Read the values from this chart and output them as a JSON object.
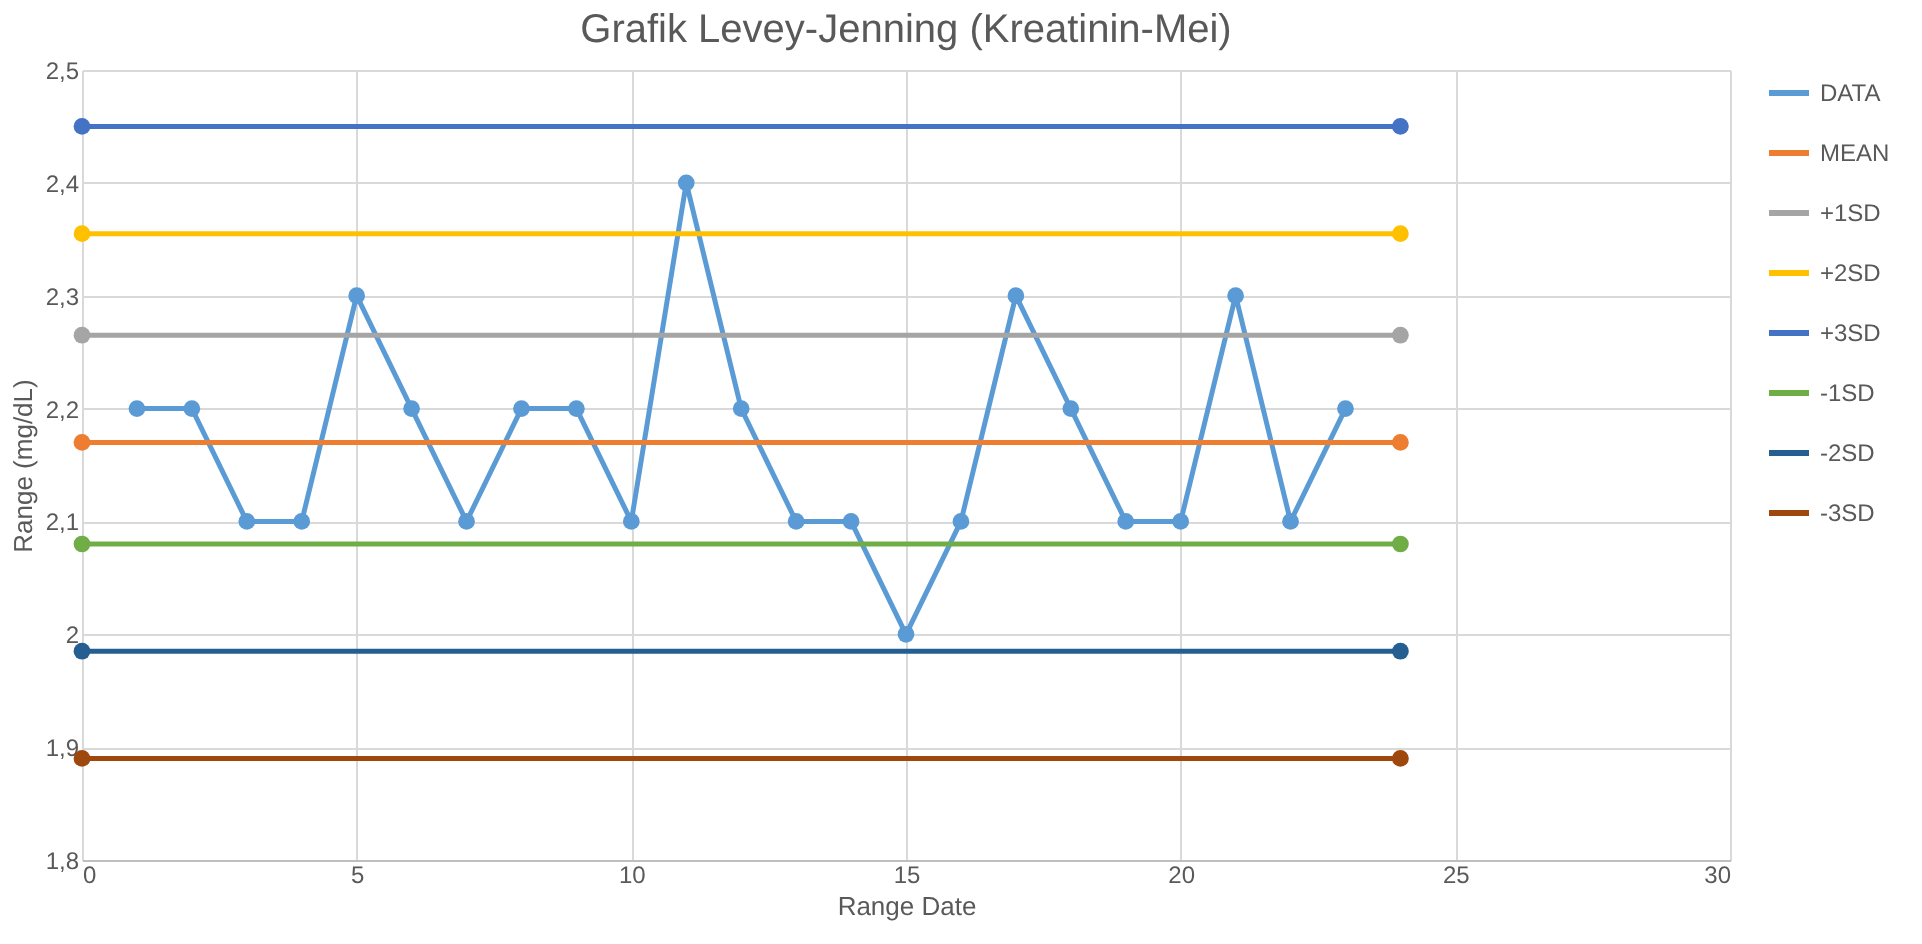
{
  "chart_data": {
    "type": "line",
    "title": "Grafik Levey-Jenning (Kreatinin-Mei)",
    "xlabel": "Range Date",
    "ylabel": "Range (mg/dL)",
    "series": [
      {
        "name": "DATA",
        "color": "#5b9bd5",
        "x": [
          1,
          2,
          3,
          4,
          5,
          6,
          7,
          8,
          9,
          10,
          11,
          12,
          13,
          14,
          15,
          16,
          17,
          18,
          19,
          20,
          21,
          22,
          23
        ],
        "values": [
          2.2,
          2.2,
          2.1,
          2.1,
          2.3,
          2.2,
          2.1,
          2.2,
          2.2,
          2.1,
          2.4,
          2.2,
          2.1,
          2.1,
          2.0,
          2.1,
          2.3,
          2.2,
          2.1,
          2.1,
          2.3,
          2.1,
          2.2
        ]
      },
      {
        "name": "MEAN",
        "color": "#ed7d31",
        "x": [
          0,
          24
        ],
        "values": [
          2.17,
          2.17
        ]
      },
      {
        "name": "+1SD",
        "color": "#a5a5a5",
        "x": [
          0,
          24
        ],
        "values": [
          2.265,
          2.265
        ]
      },
      {
        "name": "+2SD",
        "color": "#ffc000",
        "x": [
          0,
          24
        ],
        "values": [
          2.355,
          2.355
        ]
      },
      {
        "name": "+3SD",
        "color": "#4472c4",
        "x": [
          0,
          24
        ],
        "values": [
          2.45,
          2.45
        ]
      },
      {
        "name": "-1SD",
        "color": "#70ad47",
        "x": [
          0,
          24
        ],
        "values": [
          2.08,
          2.08
        ]
      },
      {
        "name": "-2SD",
        "color": "#255e91",
        "x": [
          0,
          24
        ],
        "values": [
          1.985,
          1.985
        ]
      },
      {
        "name": "-3SD",
        "color": "#9e480e",
        "x": [
          0,
          24
        ],
        "values": [
          1.89,
          1.89
        ]
      }
    ],
    "xlim": [
      0,
      30
    ],
    "xticks": [
      0,
      5,
      10,
      15,
      20,
      25,
      30
    ],
    "ylim": [
      1.8,
      2.5
    ],
    "yticks": [
      {
        "value": 1.8,
        "label": "1,8"
      },
      {
        "value": 1.9,
        "label": "1,9"
      },
      {
        "value": 2,
        "label": "2"
      },
      {
        "value": 2.1,
        "label": "2,1"
      },
      {
        "value": 2.2,
        "label": "2,2"
      },
      {
        "value": 2.3,
        "label": "2,3"
      },
      {
        "value": 2.4,
        "label": "2,4"
      },
      {
        "value": 2.5,
        "label": "2,5"
      }
    ],
    "grid": true,
    "legend": "right",
    "marker": "circle",
    "line_style": "solid"
  }
}
